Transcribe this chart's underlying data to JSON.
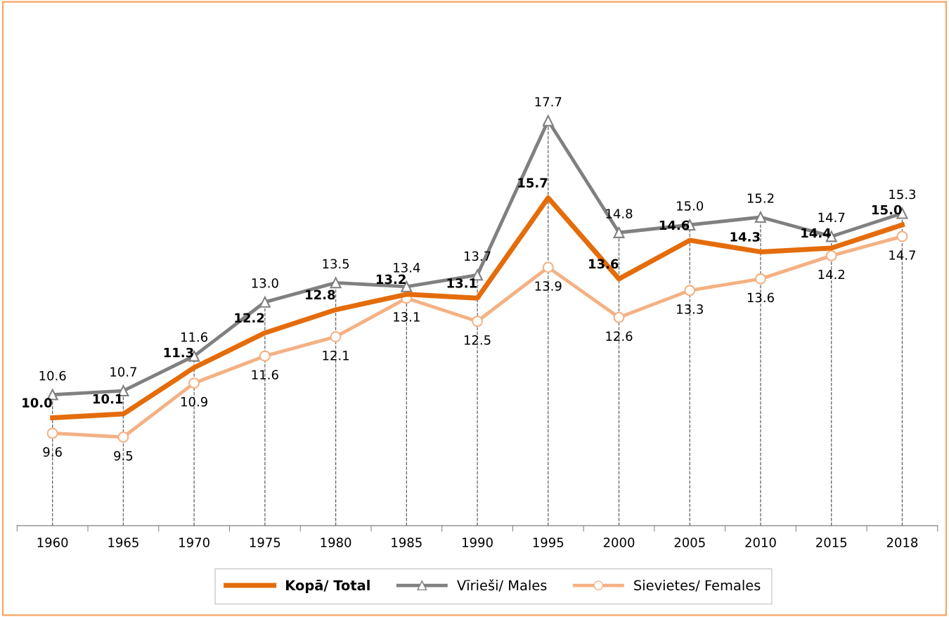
{
  "chart_data": {
    "type": "line",
    "categories": [
      "1960",
      "1965",
      "1970",
      "1975",
      "1980",
      "1985",
      "1990",
      "1995",
      "2000",
      "2005",
      "2010",
      "2015",
      "2018"
    ],
    "series": [
      {
        "name": "Kopā/ Total",
        "color": "#e46c0a",
        "marker": "none",
        "values": [
          10.0,
          10.1,
          11.3,
          12.2,
          12.8,
          13.2,
          13.1,
          15.7,
          13.6,
          14.6,
          14.3,
          14.4,
          15.0
        ],
        "value_labels": [
          "10.0",
          "10.1",
          "11.3",
          "12.2",
          "12.8",
          "13.2",
          "13.1",
          "15.7",
          "13.6",
          "14.6",
          "14.3",
          "14.4",
          "15.0"
        ]
      },
      {
        "name": "Vīrieši/ Males",
        "color": "#808080",
        "marker": "triangle",
        "values": [
          10.6,
          10.7,
          11.6,
          13.0,
          13.5,
          13.4,
          13.7,
          17.7,
          14.8,
          15.0,
          15.2,
          14.7,
          15.3
        ],
        "value_labels": [
          "10.6",
          "10.7",
          "11.6",
          "13.0",
          "13.5",
          "13.4",
          "13.7",
          "17.7",
          "14.8",
          "15.0",
          "15.2",
          "14.7",
          "15.3"
        ]
      },
      {
        "name": "Sievietes/ Females",
        "color": "#f4b183",
        "marker": "circle",
        "values": [
          9.6,
          9.5,
          10.9,
          11.6,
          12.1,
          13.1,
          12.5,
          13.9,
          12.6,
          13.3,
          13.6,
          14.2,
          14.7
        ],
        "value_labels": [
          "9.6",
          "9.5",
          "10.9",
          "11.6",
          "12.1",
          "13.1",
          "12.5",
          "13.9",
          "12.6",
          "13.3",
          "13.6",
          "14.2",
          "14.7"
        ]
      }
    ],
    "tick_labels": "x",
    "legend": "bottom",
    "grid": "x",
    "line_style": "solid"
  }
}
